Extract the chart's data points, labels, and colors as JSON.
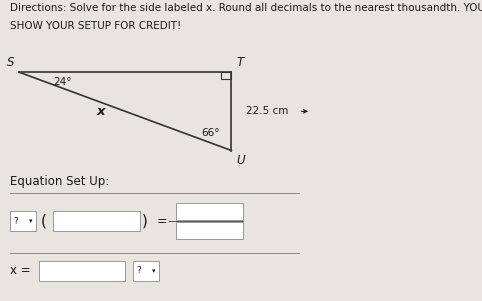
{
  "title_line1": "Directions: Solve for the side labeled x. Round all decimals to the nearest thousandth. YOU MUST",
  "title_line2": "SHOW YOUR SETUP FOR CREDIT!",
  "triangle": {
    "S": [
      0.04,
      0.76
    ],
    "T": [
      0.48,
      0.76
    ],
    "U": [
      0.48,
      0.5
    ]
  },
  "angle_S_deg": "24°",
  "angle_U_deg": "66°",
  "side_TU_label": "22.5 cm",
  "side_SU_label": "x",
  "right_angle_at": "T",
  "eq_label": "Equation Set Up:",
  "x_eq_label": "x =",
  "bg_color": "#e8e5e0",
  "line_color": "#333333",
  "text_color": "#1a1a1a",
  "box_color": "#ffffff",
  "box_border": "#999999",
  "title_fontsize": 7.5,
  "label_fontsize": 8.5,
  "eq_fontsize": 8.5,
  "small_fontsize": 7.5
}
